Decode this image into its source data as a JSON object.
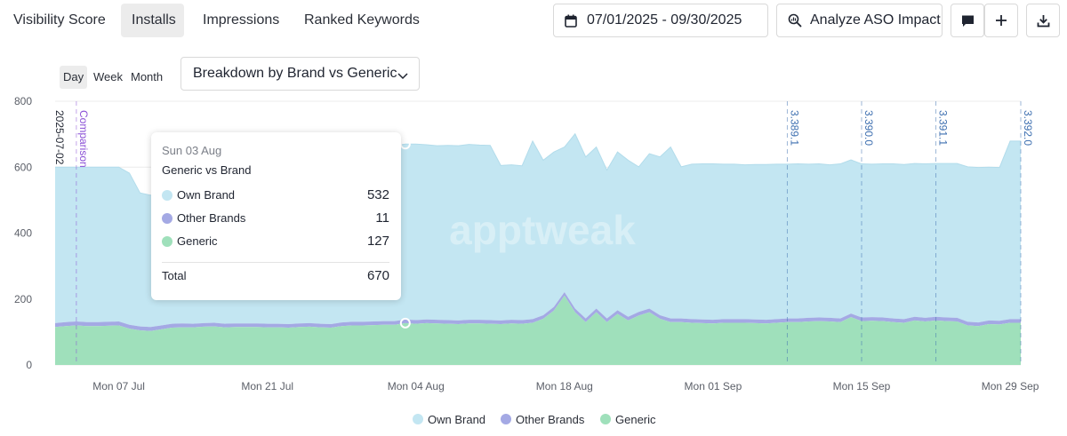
{
  "tabs": [
    {
      "label": "Visibility Score",
      "active": false
    },
    {
      "label": "Installs",
      "active": true
    },
    {
      "label": "Impressions",
      "active": false
    },
    {
      "label": "Ranked Keywords",
      "active": false
    }
  ],
  "date_range": "07/01/2025 - 09/30/2025",
  "analyze_label": "Analyze ASO Impact",
  "granularity": [
    {
      "label": "Day",
      "active": true
    },
    {
      "label": "Week",
      "active": false
    },
    {
      "label": "Month",
      "active": false
    }
  ],
  "breakdown_label": "Breakdown by Brand vs Generic",
  "colors": {
    "own_brand": "#c3e6f2",
    "other_brands": "#a4a9e4",
    "generic": "#9fe0bb",
    "annotation_version": "#3d6fb0",
    "annotation_comparison": "#8a4fd6"
  },
  "tooltip": {
    "date": "Sun 03 Aug",
    "subtitle": "Generic vs Brand",
    "rows": [
      {
        "label": "Own Brand",
        "value": "532"
      },
      {
        "label": "Other Brands",
        "value": "11"
      },
      {
        "label": "Generic",
        "value": "127"
      }
    ],
    "total_label": "Total",
    "total_value": "670"
  },
  "watermark": "apptweak",
  "chart_data": {
    "type": "area",
    "stacked": true,
    "ylim": [
      0,
      800
    ],
    "yticks": [
      0,
      200,
      400,
      600,
      800
    ],
    "xlim": [
      "2025-07-01",
      "2025-09-30"
    ],
    "xticks": [
      {
        "date": "2025-07-07",
        "label": "Mon 07 Jul"
      },
      {
        "date": "2025-07-21",
        "label": "Mon 21 Jul"
      },
      {
        "date": "2025-08-04",
        "label": "Mon 04 Aug"
      },
      {
        "date": "2025-08-18",
        "label": "Mon 18 Aug"
      },
      {
        "date": "2025-09-01",
        "label": "Mon 01 Sep"
      },
      {
        "date": "2025-09-15",
        "label": "Mon 15 Sep"
      },
      {
        "date": "2025-09-29",
        "label": "Mon 29 Sep"
      }
    ],
    "legend": [
      "Own Brand",
      "Other Brands",
      "Generic"
    ],
    "legend_position": "bottom",
    "annotations": [
      {
        "date": "2025-07-02",
        "label": "2025-07-02",
        "kind": "date"
      },
      {
        "date": "2025-07-03",
        "label": "Comparison",
        "kind": "comparison"
      },
      {
        "date": "2025-09-08",
        "label": "3.389.1",
        "kind": "version"
      },
      {
        "date": "2025-09-15",
        "label": "3.390.0",
        "kind": "version"
      },
      {
        "date": "2025-09-22",
        "label": "3.391.1",
        "kind": "version"
      },
      {
        "date": "2025-09-30",
        "label": "3.392.0",
        "kind": "version"
      }
    ],
    "hover_date": "2025-08-03",
    "x": [
      "2025-07-01",
      "2025-07-02",
      "2025-07-03",
      "2025-07-04",
      "2025-07-05",
      "2025-07-06",
      "2025-07-07",
      "2025-07-08",
      "2025-07-09",
      "2025-07-10",
      "2025-07-11",
      "2025-07-12",
      "2025-07-13",
      "2025-07-14",
      "2025-07-15",
      "2025-07-16",
      "2025-07-17",
      "2025-07-18",
      "2025-07-19",
      "2025-07-20",
      "2025-07-21",
      "2025-07-22",
      "2025-07-23",
      "2025-07-24",
      "2025-07-25",
      "2025-07-26",
      "2025-07-27",
      "2025-07-28",
      "2025-07-29",
      "2025-07-30",
      "2025-07-31",
      "2025-08-01",
      "2025-08-02",
      "2025-08-03",
      "2025-08-04",
      "2025-08-05",
      "2025-08-06",
      "2025-08-07",
      "2025-08-08",
      "2025-08-09",
      "2025-08-10",
      "2025-08-11",
      "2025-08-12",
      "2025-08-13",
      "2025-08-14",
      "2025-08-15",
      "2025-08-16",
      "2025-08-17",
      "2025-08-18",
      "2025-08-19",
      "2025-08-20",
      "2025-08-21",
      "2025-08-22",
      "2025-08-23",
      "2025-08-24",
      "2025-08-25",
      "2025-08-26",
      "2025-08-27",
      "2025-08-28",
      "2025-08-29",
      "2025-08-30",
      "2025-08-31",
      "2025-09-01",
      "2025-09-02",
      "2025-09-03",
      "2025-09-04",
      "2025-09-05",
      "2025-09-06",
      "2025-09-07",
      "2025-09-08",
      "2025-09-09",
      "2025-09-10",
      "2025-09-11",
      "2025-09-12",
      "2025-09-13",
      "2025-09-14",
      "2025-09-15",
      "2025-09-16",
      "2025-09-17",
      "2025-09-18",
      "2025-09-19",
      "2025-09-20",
      "2025-09-21",
      "2025-09-22",
      "2025-09-23",
      "2025-09-24",
      "2025-09-25",
      "2025-09-26",
      "2025-09-27",
      "2025-09-28",
      "2025-09-29",
      "2025-09-30"
    ],
    "series": [
      {
        "name": "Generic",
        "values": [
          115,
          118,
          120,
          118,
          118,
          119,
          120,
          110,
          105,
          103,
          108,
          113,
          114,
          114,
          116,
          117,
          114,
          115,
          115,
          115,
          114,
          114,
          113,
          115,
          116,
          114,
          113,
          118,
          120,
          120,
          121,
          122,
          122,
          127,
          125,
          127,
          126,
          125,
          124,
          126,
          126,
          125,
          124,
          126,
          125,
          128,
          140,
          165,
          210,
          160,
          130,
          160,
          130,
          155,
          135,
          150,
          160,
          140,
          130,
          130,
          128,
          127,
          126,
          128,
          128,
          128,
          127,
          126,
          128,
          130,
          130,
          132,
          133,
          132,
          130,
          145,
          133,
          134,
          133,
          130,
          128,
          135,
          132,
          135,
          133,
          132,
          120,
          118,
          124,
          123,
          128,
          128
        ]
      },
      {
        "name": "Other Brands",
        "values": [
          12,
          12,
          12,
          12,
          12,
          12,
          12,
          12,
          12,
          12,
          12,
          12,
          12,
          11,
          11,
          11,
          11,
          11,
          11,
          11,
          11,
          11,
          11,
          11,
          11,
          11,
          11,
          11,
          11,
          11,
          11,
          11,
          11,
          11,
          11,
          11,
          11,
          11,
          11,
          11,
          11,
          11,
          11,
          11,
          11,
          11,
          11,
          11,
          11,
          11,
          11,
          11,
          11,
          11,
          11,
          11,
          11,
          11,
          11,
          11,
          11,
          11,
          11,
          11,
          11,
          11,
          11,
          11,
          11,
          11,
          11,
          11,
          11,
          11,
          11,
          11,
          11,
          11,
          11,
          11,
          11,
          11,
          11,
          11,
          11,
          11,
          11,
          11,
          11,
          11,
          11,
          11
        ]
      },
      {
        "name": "Own Brand",
        "values": [
          473,
          470,
          468,
          470,
          470,
          469,
          468,
          460,
          405,
          400,
          395,
          420,
          435,
          440,
          450,
          452,
          450,
          452,
          450,
          450,
          452,
          455,
          456,
          455,
          455,
          456,
          456,
          520,
          525,
          528,
          530,
          532,
          532,
          532,
          534,
          530,
          528,
          530,
          530,
          532,
          530,
          530,
          470,
          470,
          468,
          540,
          470,
          470,
          440,
          530,
          490,
          490,
          450,
          480,
          475,
          440,
          470,
          480,
          520,
          460,
          470,
          472,
          473,
          470,
          470,
          468,
          470,
          471,
          470,
          468,
          469,
          466,
          466,
          464,
          469,
          466,
          466,
          464,
          466,
          469,
          469,
          465,
          467,
          465,
          467,
          468,
          470,
          470,
          465,
          465,
          540,
          540
        ]
      }
    ]
  }
}
